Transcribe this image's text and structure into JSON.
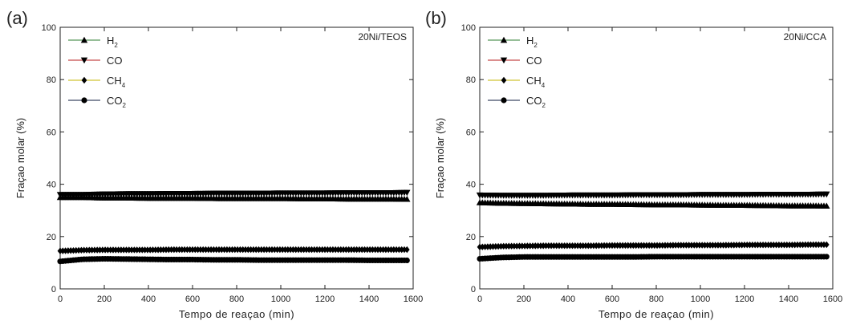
{
  "colors": {
    "axis": "#222222",
    "marker": "#000000",
    "h2_line": "#2e7d32",
    "co_line": "#b71c1c",
    "ch4_line": "#c6b400",
    "co2_line": "#0d1b3e"
  },
  "chart_data": [
    {
      "type": "line",
      "panel_label": "(a)",
      "annotation": "20Ni/TEOS",
      "xlabel": "Tempo de reaçao (min)",
      "ylabel": "Fraçao molar (%)",
      "xlim": [
        0,
        1600
      ],
      "ylim": [
        0,
        100
      ],
      "xticks": [
        0,
        200,
        400,
        600,
        800,
        1000,
        1200,
        1400,
        1600
      ],
      "yticks": [
        0,
        20,
        40,
        60,
        80,
        100
      ],
      "grid": false,
      "legend_position": "top-left",
      "x": [
        0,
        100,
        200,
        300,
        400,
        500,
        600,
        700,
        800,
        900,
        1000,
        1100,
        1200,
        1300,
        1400,
        1500,
        1575
      ],
      "series": [
        {
          "name": "H",
          "sub": "2",
          "marker": "triangle-up",
          "values": [
            35.0,
            35.0,
            34.8,
            34.8,
            34.7,
            34.7,
            34.7,
            34.6,
            34.6,
            34.6,
            34.6,
            34.5,
            34.5,
            34.4,
            34.4,
            34.4,
            34.3
          ]
        },
        {
          "name": "CO",
          "sub": "",
          "marker": "triangle-down",
          "values": [
            36.0,
            36.0,
            36.2,
            36.3,
            36.3,
            36.4,
            36.4,
            36.5,
            36.5,
            36.5,
            36.6,
            36.6,
            36.6,
            36.7,
            36.7,
            36.7,
            36.8
          ]
        },
        {
          "name": "CH",
          "sub": "4",
          "marker": "diamond",
          "values": [
            14.5,
            14.8,
            14.9,
            14.9,
            14.9,
            15.0,
            15.0,
            15.0,
            15.0,
            15.0,
            15.0,
            15.0,
            15.0,
            15.0,
            15.0,
            15.0,
            15.0
          ]
        },
        {
          "name": "CO",
          "sub": "2",
          "marker": "circle",
          "values": [
            10.5,
            11.3,
            11.5,
            11.4,
            11.3,
            11.2,
            11.2,
            11.1,
            11.1,
            11.0,
            11.0,
            11.0,
            11.0,
            11.0,
            10.9,
            10.9,
            10.9
          ]
        }
      ]
    },
    {
      "type": "line",
      "panel_label": "(b)",
      "annotation": "20Ni/CCA",
      "xlabel": "Tempo de reaçao (min)",
      "ylabel": "Fraçao molar (%)",
      "xlim": [
        0,
        1600
      ],
      "ylim": [
        0,
        100
      ],
      "xticks": [
        0,
        200,
        400,
        600,
        800,
        1000,
        1200,
        1400,
        1600
      ],
      "yticks": [
        0,
        20,
        40,
        60,
        80,
        100
      ],
      "grid": false,
      "legend_position": "top-left",
      "x": [
        0,
        100,
        200,
        300,
        400,
        500,
        600,
        700,
        800,
        900,
        1000,
        1100,
        1200,
        1300,
        1400,
        1500,
        1575
      ],
      "series": [
        {
          "name": "H",
          "sub": "2",
          "marker": "triangle-up",
          "values": [
            33.0,
            32.8,
            32.7,
            32.6,
            32.5,
            32.4,
            32.4,
            32.3,
            32.2,
            32.2,
            32.1,
            32.0,
            32.0,
            31.9,
            31.8,
            31.8,
            31.7
          ]
        },
        {
          "name": "CO",
          "sub": "",
          "marker": "triangle-down",
          "values": [
            35.8,
            35.7,
            35.7,
            35.7,
            35.8,
            35.8,
            35.8,
            35.9,
            35.9,
            35.9,
            36.0,
            36.0,
            36.0,
            36.1,
            36.1,
            36.1,
            36.2
          ]
        },
        {
          "name": "CH",
          "sub": "4",
          "marker": "diamond",
          "values": [
            16.0,
            16.3,
            16.4,
            16.5,
            16.5,
            16.5,
            16.6,
            16.6,
            16.6,
            16.7,
            16.7,
            16.7,
            16.8,
            16.8,
            16.8,
            16.9,
            16.9
          ]
        },
        {
          "name": "CO",
          "sub": "2",
          "marker": "circle",
          "values": [
            11.5,
            12.0,
            12.2,
            12.2,
            12.2,
            12.2,
            12.2,
            12.2,
            12.3,
            12.3,
            12.3,
            12.3,
            12.3,
            12.3,
            12.3,
            12.3,
            12.3
          ]
        }
      ]
    }
  ]
}
